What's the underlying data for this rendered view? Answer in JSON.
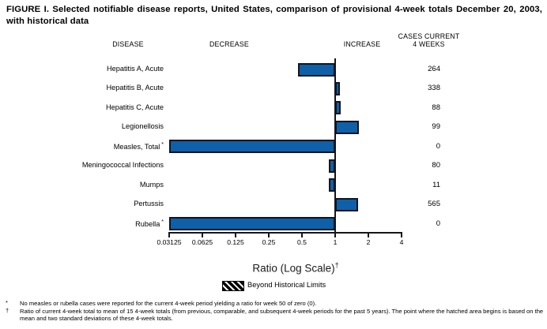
{
  "title": "FIGURE I. Selected notifiable disease reports, United States, comparison of provisional 4-week totals December 20, 2003, with historical data",
  "columns": {
    "disease": "DISEASE",
    "decrease": "DECREASE",
    "increase": "INCREASE",
    "cases_line1": "CASES CURRENT",
    "cases_line2": "4 WEEKS"
  },
  "chart_data": {
    "type": "bar",
    "orientation": "horizontal",
    "scale": "log2",
    "xlim": [
      0.03125,
      4
    ],
    "baseline": 1,
    "ticks": [
      "0.03125",
      "0.0625",
      "0.125",
      "0.25",
      "0.5",
      "1",
      "2",
      "4"
    ],
    "xlabel": "Ratio (Log Scale)",
    "xlabel_sup": "†",
    "grid": false,
    "legend_position": "bottom",
    "rows": [
      {
        "disease": "Hepatitis A, Acute",
        "flag": "",
        "ratio": 0.46,
        "cases": "264"
      },
      {
        "disease": "Hepatitis B, Acute",
        "flag": "",
        "ratio": 1.05,
        "cases": "338"
      },
      {
        "disease": "Hepatitis C, Acute",
        "flag": "",
        "ratio": 1.13,
        "cases": "88"
      },
      {
        "disease": "Legionellosis",
        "flag": "",
        "ratio": 1.64,
        "cases": "99"
      },
      {
        "disease": "Measles, Total",
        "flag": "*",
        "ratio": 0,
        "cases": "0"
      },
      {
        "disease": "Meningococcal Infections",
        "flag": "",
        "ratio": 0.87,
        "cases": "80"
      },
      {
        "disease": "Mumps",
        "flag": "",
        "ratio": 0.87,
        "cases": "11"
      },
      {
        "disease": "Pertussis",
        "flag": "",
        "ratio": 1.62,
        "cases": "565"
      },
      {
        "disease": "Rubella",
        "flag": "*",
        "ratio": 0,
        "cases": "0"
      }
    ],
    "legend": {
      "label": "Beyond Historical Limits"
    }
  },
  "colors": {
    "bar_fill": "#0e60a8",
    "bar_outline": "#15151d",
    "text": "#000000",
    "background": "#ffffff"
  },
  "footnotes": [
    {
      "marker": "*",
      "text": "No measles or rubella cases were reported for the current 4-week period yielding a ratio for week 50 of zero (0)."
    },
    {
      "marker": "†",
      "text": "Ratio of current 4-week total to mean of 15 4-week totals (from previous, comparable, and subsequent 4-week periods for the past 5 years). The point where the hatched area begins is based on the mean and two standard deviations of these 4-week totals."
    }
  ]
}
